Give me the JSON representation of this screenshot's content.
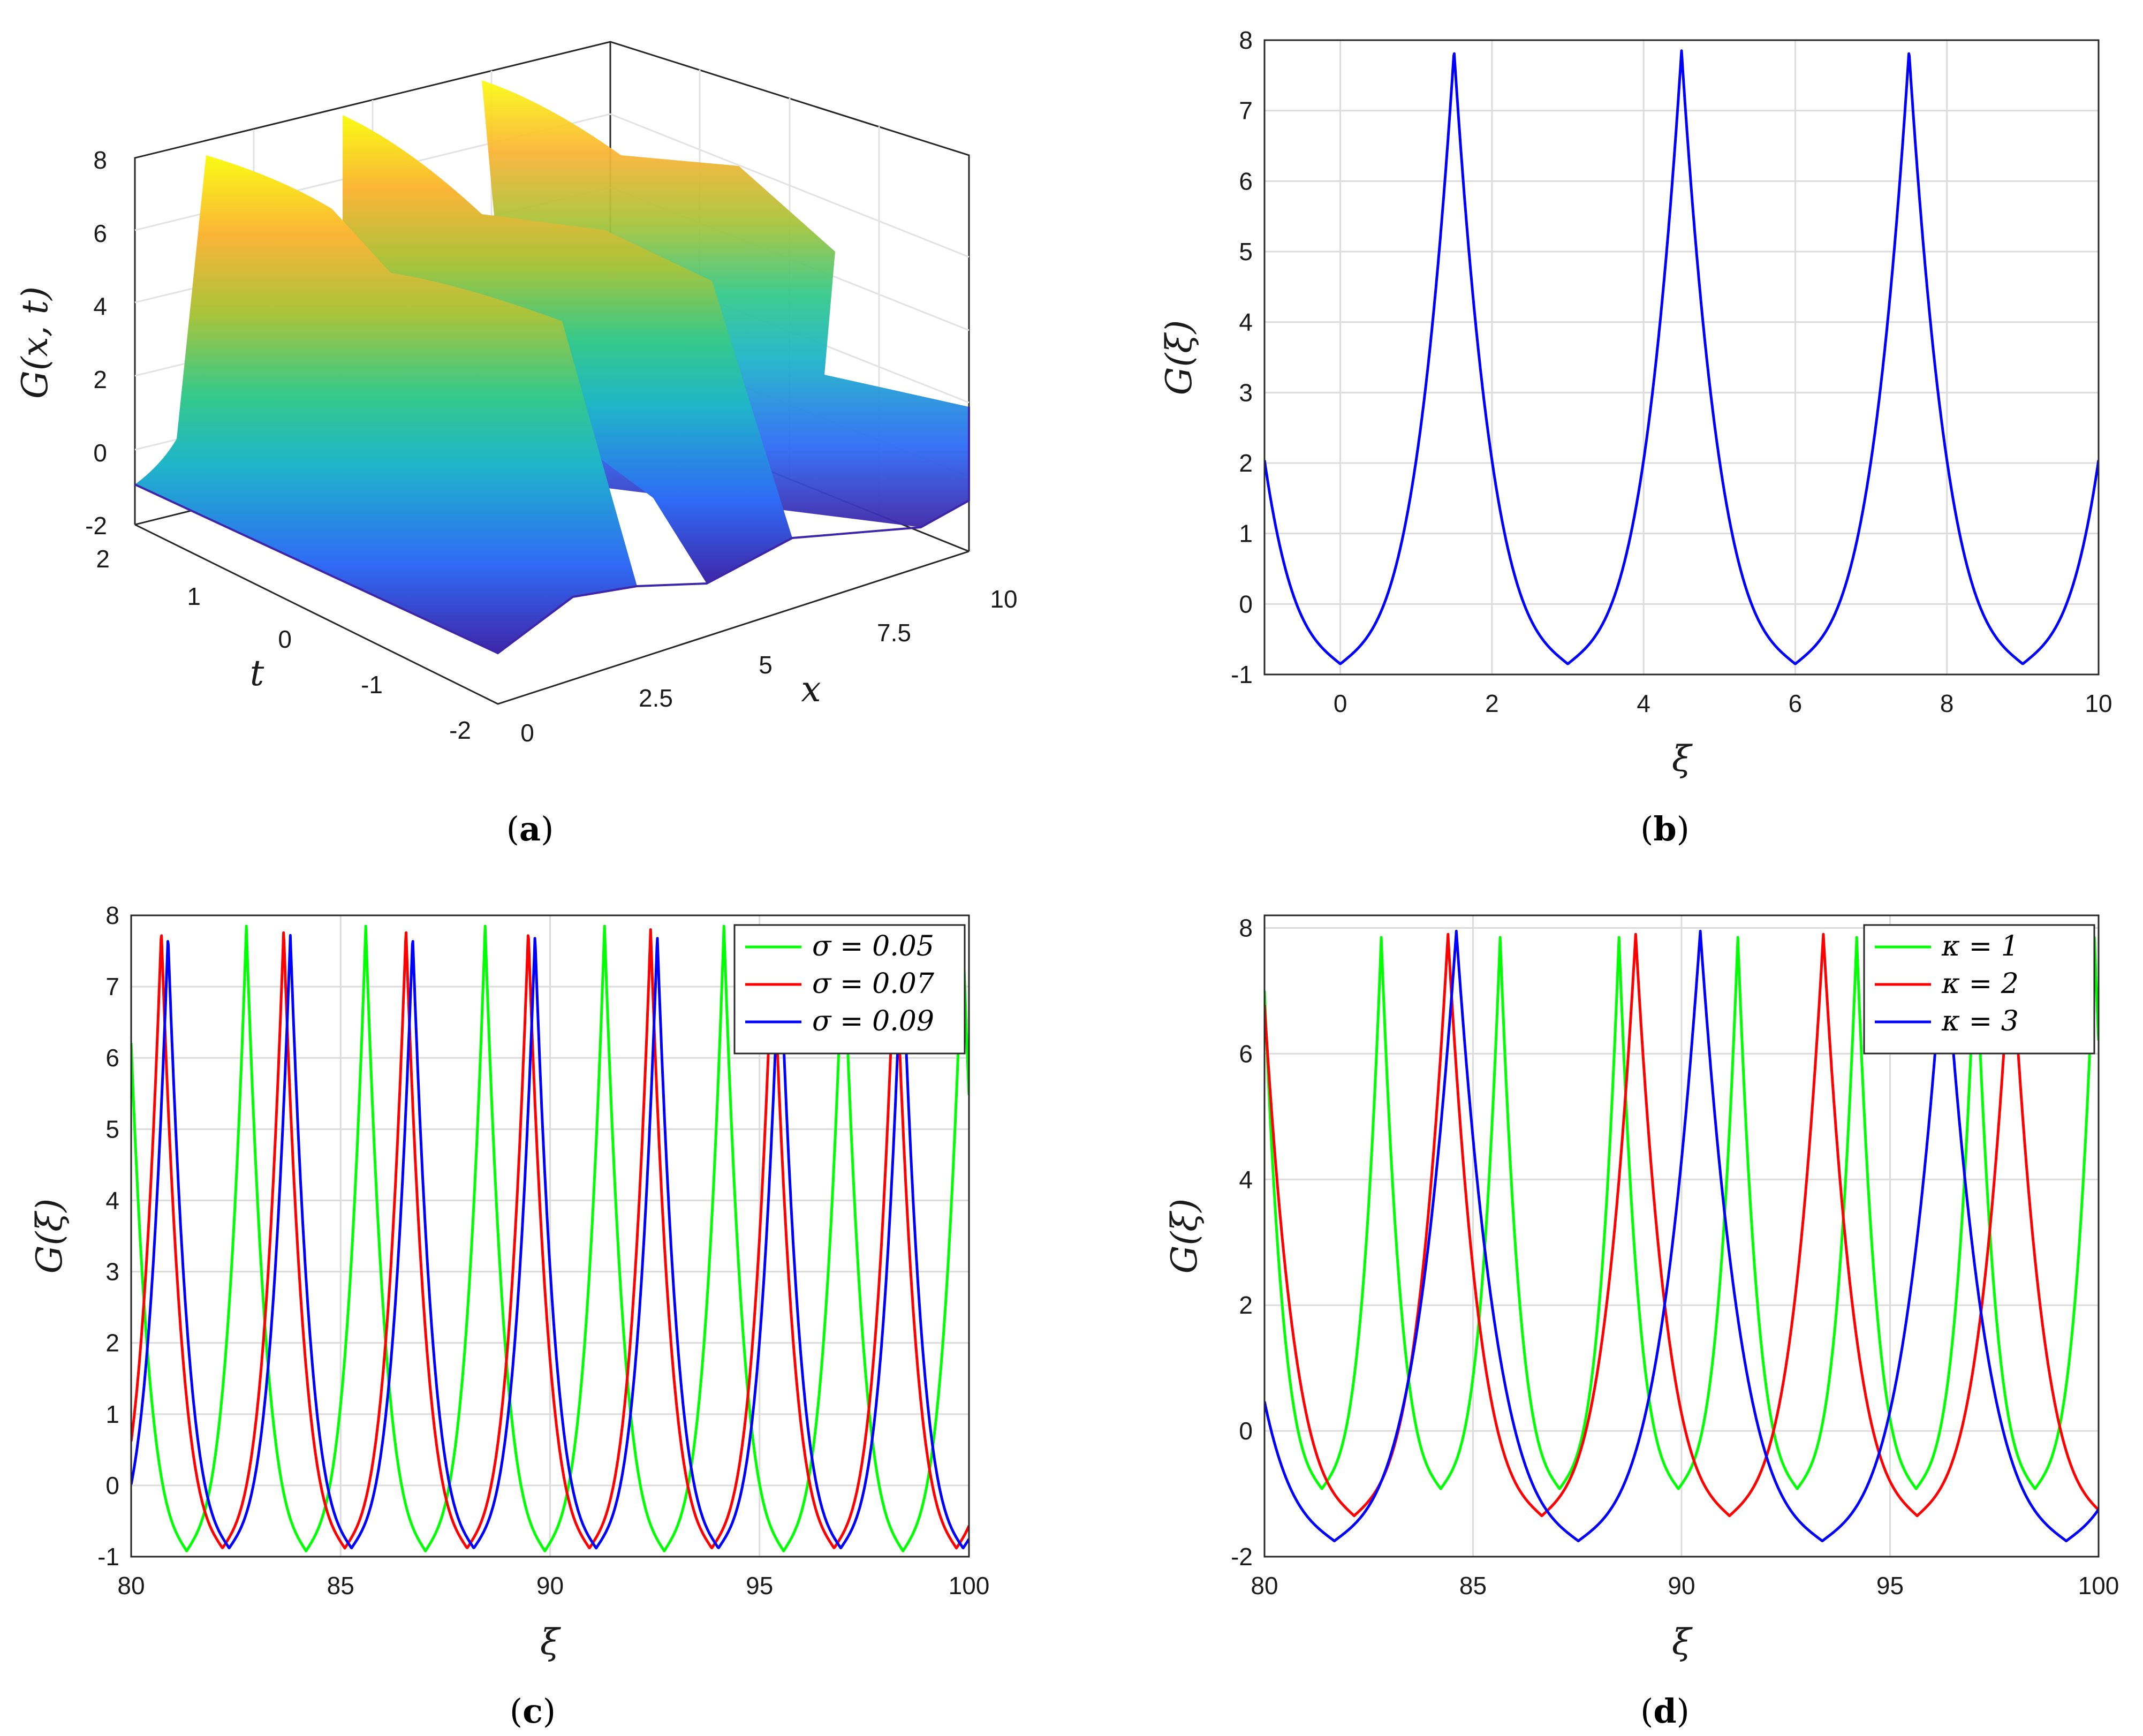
{
  "colors": {
    "green": "#00ff00",
    "red": "#ff0000",
    "blue": "#0000ff",
    "surface_colormap": [
      "#3e26a8",
      "#2f6bf5",
      "#1fb5c8",
      "#35c98a",
      "#a8c43b",
      "#fbb437",
      "#f9fb15"
    ]
  },
  "panels": {
    "a": {
      "caption": "(a)",
      "zlabel": "G(x, t)",
      "tlabel": "t",
      "xlabel": "x",
      "z_ticks": [
        "-2",
        "0",
        "2",
        "4",
        "6",
        "8"
      ],
      "t_ticks": [
        "-2",
        "-1",
        "0",
        "1",
        "2"
      ],
      "x_ticks": [
        "0",
        "2.5",
        "5",
        "7.5",
        "10"
      ]
    },
    "b": {
      "caption": "(b)",
      "xlabel": "ξ",
      "ylabel": "G(ξ)"
    },
    "c": {
      "caption": "(c)",
      "xlabel": "ξ",
      "ylabel": "G(ξ)"
    },
    "d": {
      "caption": "(d)",
      "xlabel": "ξ",
      "ylabel": "G(ξ)"
    }
  },
  "chart_data": [
    {
      "id": "a",
      "type": "surface",
      "title": "",
      "xlabel": "x",
      "ylabel": "t",
      "zlabel": "G(x, t)",
      "xlim": [
        0,
        10
      ],
      "ylim": [
        -2,
        2
      ],
      "zlim": [
        -2,
        8
      ],
      "description_values": {
        "period_in_x": 3,
        "max": 7.85,
        "min": -0.85,
        "wave_speed": 0
      }
    },
    {
      "id": "b",
      "type": "line",
      "xlabel": "ξ",
      "ylabel": "G(ξ)",
      "xlim": [
        -1,
        10
      ],
      "ylim": [
        -1,
        8
      ],
      "xticks": [
        0,
        2,
        4,
        6,
        8,
        10
      ],
      "yticks": [
        -1,
        0,
        1,
        2,
        3,
        4,
        5,
        6,
        7,
        8
      ],
      "series": [
        {
          "name": "G",
          "color": "#0000ff",
          "period": 3,
          "peak_at": 1.5,
          "max": 7.85,
          "min": -0.85
        }
      ]
    },
    {
      "id": "c",
      "type": "line",
      "xlabel": "ξ",
      "ylabel": "G(ξ)",
      "xlim": [
        80,
        100
      ],
      "ylim": [
        -1,
        8
      ],
      "xticks": [
        80,
        85,
        90,
        95,
        100
      ],
      "yticks": [
        -1,
        0,
        1,
        2,
        3,
        4,
        5,
        6,
        7,
        8
      ],
      "legend": "top-right",
      "series": [
        {
          "name": "σ = 0.05",
          "color": "#00ff00",
          "period": 2.85,
          "peak_at": 82.75,
          "max": 7.85,
          "min": -0.92
        },
        {
          "name": "σ = 0.07",
          "color": "#ff0000",
          "period": 2.92,
          "peak_at": 80.72,
          "max": 7.8,
          "min": -0.88
        },
        {
          "name": "σ = 0.09",
          "color": "#0000ff",
          "period": 2.92,
          "peak_at": 80.88,
          "max": 7.72,
          "min": -0.88
        }
      ]
    },
    {
      "id": "d",
      "type": "line",
      "xlabel": "ξ",
      "ylabel": "G(ξ)",
      "xlim": [
        80,
        100
      ],
      "ylim": [
        -2,
        8.2
      ],
      "xticks": [
        80,
        85,
        90,
        95,
        100
      ],
      "yticks": [
        -2,
        0,
        2,
        4,
        6,
        8
      ],
      "legend": "top-right",
      "series": [
        {
          "name": "κ = 1",
          "color": "#00ff00",
          "period": 2.85,
          "peak_at": 82.8,
          "max": 7.85,
          "min": -0.92
        },
        {
          "name": "κ = 2",
          "color": "#ff0000",
          "period": 4.5,
          "peak_at": 84.4,
          "max": 7.9,
          "min": -1.35
        },
        {
          "name": "κ = 3",
          "color": "#0000ff",
          "period": 5.85,
          "peak_at": 84.6,
          "max": 7.95,
          "min": -1.75
        }
      ]
    }
  ]
}
